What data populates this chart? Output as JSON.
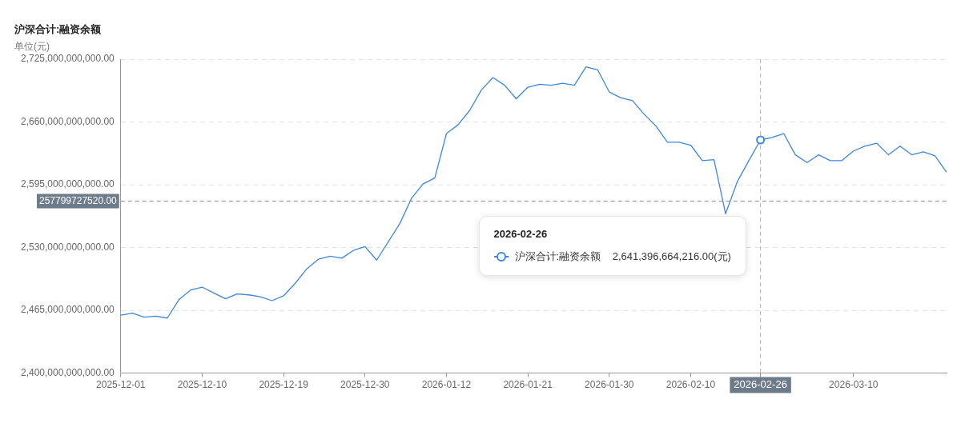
{
  "chart_data": {
    "type": "line",
    "title": "沪深合计:融资余额",
    "subtitle": "单位(元)",
    "categories": [
      "2025-12-01",
      null,
      null,
      null,
      null,
      null,
      null,
      "2025-12-10",
      null,
      null,
      null,
      null,
      null,
      null,
      "2025-12-19",
      null,
      null,
      null,
      null,
      null,
      null,
      "2025-12-30",
      null,
      null,
      null,
      null,
      null,
      null,
      "2026-01-12",
      null,
      null,
      null,
      null,
      null,
      null,
      "2026-01-21",
      null,
      null,
      null,
      null,
      null,
      null,
      "2026-01-30",
      null,
      null,
      null,
      null,
      null,
      null,
      "2026-02-10",
      null,
      null,
      null,
      null,
      null,
      "2026-02-26",
      null,
      null,
      null,
      null,
      null,
      null,
      null,
      "2026-03-10",
      null,
      null,
      null,
      null,
      null,
      null,
      null,
      null
    ],
    "series": [
      {
        "color": "#3d87e0",
        "values": [
          2460000000000,
          2462000000000,
          2458000000000,
          2459000000000,
          2457000000000,
          2476000000000,
          2486000000000,
          2489000000000,
          2483000000000,
          2477000000000,
          2482000000000,
          2481000000000,
          2479000000000,
          2475000000000,
          2480000000000,
          2493000000000,
          2508000000000,
          2518000000000,
          2521000000000,
          2519000000000,
          2527000000000,
          2531000000000,
          2517000000000,
          2536000000000,
          2555000000000,
          2581000000000,
          2596000000000,
          2602000000000,
          2648000000000,
          2657000000000,
          2672000000000,
          2693000000000,
          2706000000000,
          2698000000000,
          2684000000000,
          2696000000000,
          2699000000000,
          2698000000000,
          2700000000000,
          2698000000000,
          2717000000000,
          2714000000000,
          2691000000000,
          2685000000000,
          2682000000000,
          2668000000000,
          2656000000000,
          2639000000000,
          2639000000000,
          2636000000000,
          2620000000000,
          2621000000000,
          2565000000000,
          2598000000000,
          2620000000000,
          2641396664216,
          2644000000000,
          2648000000000,
          2626000000000,
          2618000000000,
          2626000000000,
          2620000000000,
          2620000000000,
          2630000000000,
          2635000000000,
          2638000000000,
          2626000000000,
          2635000000000,
          2626000000000,
          2629000000000,
          2625000000000,
          2608000000000
        ]
      }
    ],
    "ylim": [
      2400000000000,
      2725000000000
    ],
    "yticks": [
      {
        "value": 2400000000000,
        "label": "2,400,000,000,000.00"
      },
      {
        "value": 2465000000000,
        "label": "2,465,000,000,000.00"
      },
      {
        "value": 2530000000000,
        "label": "2,530,000,000,000.00"
      },
      {
        "value": 2595000000000,
        "label": "2,595,000,000,000.00"
      },
      {
        "value": 2660000000000,
        "label": "2,660,000,000,000.00"
      },
      {
        "value": 2725000000000,
        "label": "2,725,000,000,000.00"
      }
    ],
    "ref_lines": [
      {
        "axis": "y",
        "value": 2578000000000,
        "line_style": "dashed",
        "color": "#888888"
      },
      {
        "axis": "x",
        "value": "2026-02-26",
        "line_style": "dashed",
        "color": "#aab4c8"
      }
    ],
    "annotations": [
      "257799727520.00",
      "2026-02-26",
      "沪深合计:融资余额    2,641,396,664,216.00(元)"
    ],
    "grid": "y",
    "legend": false,
    "marker": "none",
    "line_style": "solid"
  }
}
